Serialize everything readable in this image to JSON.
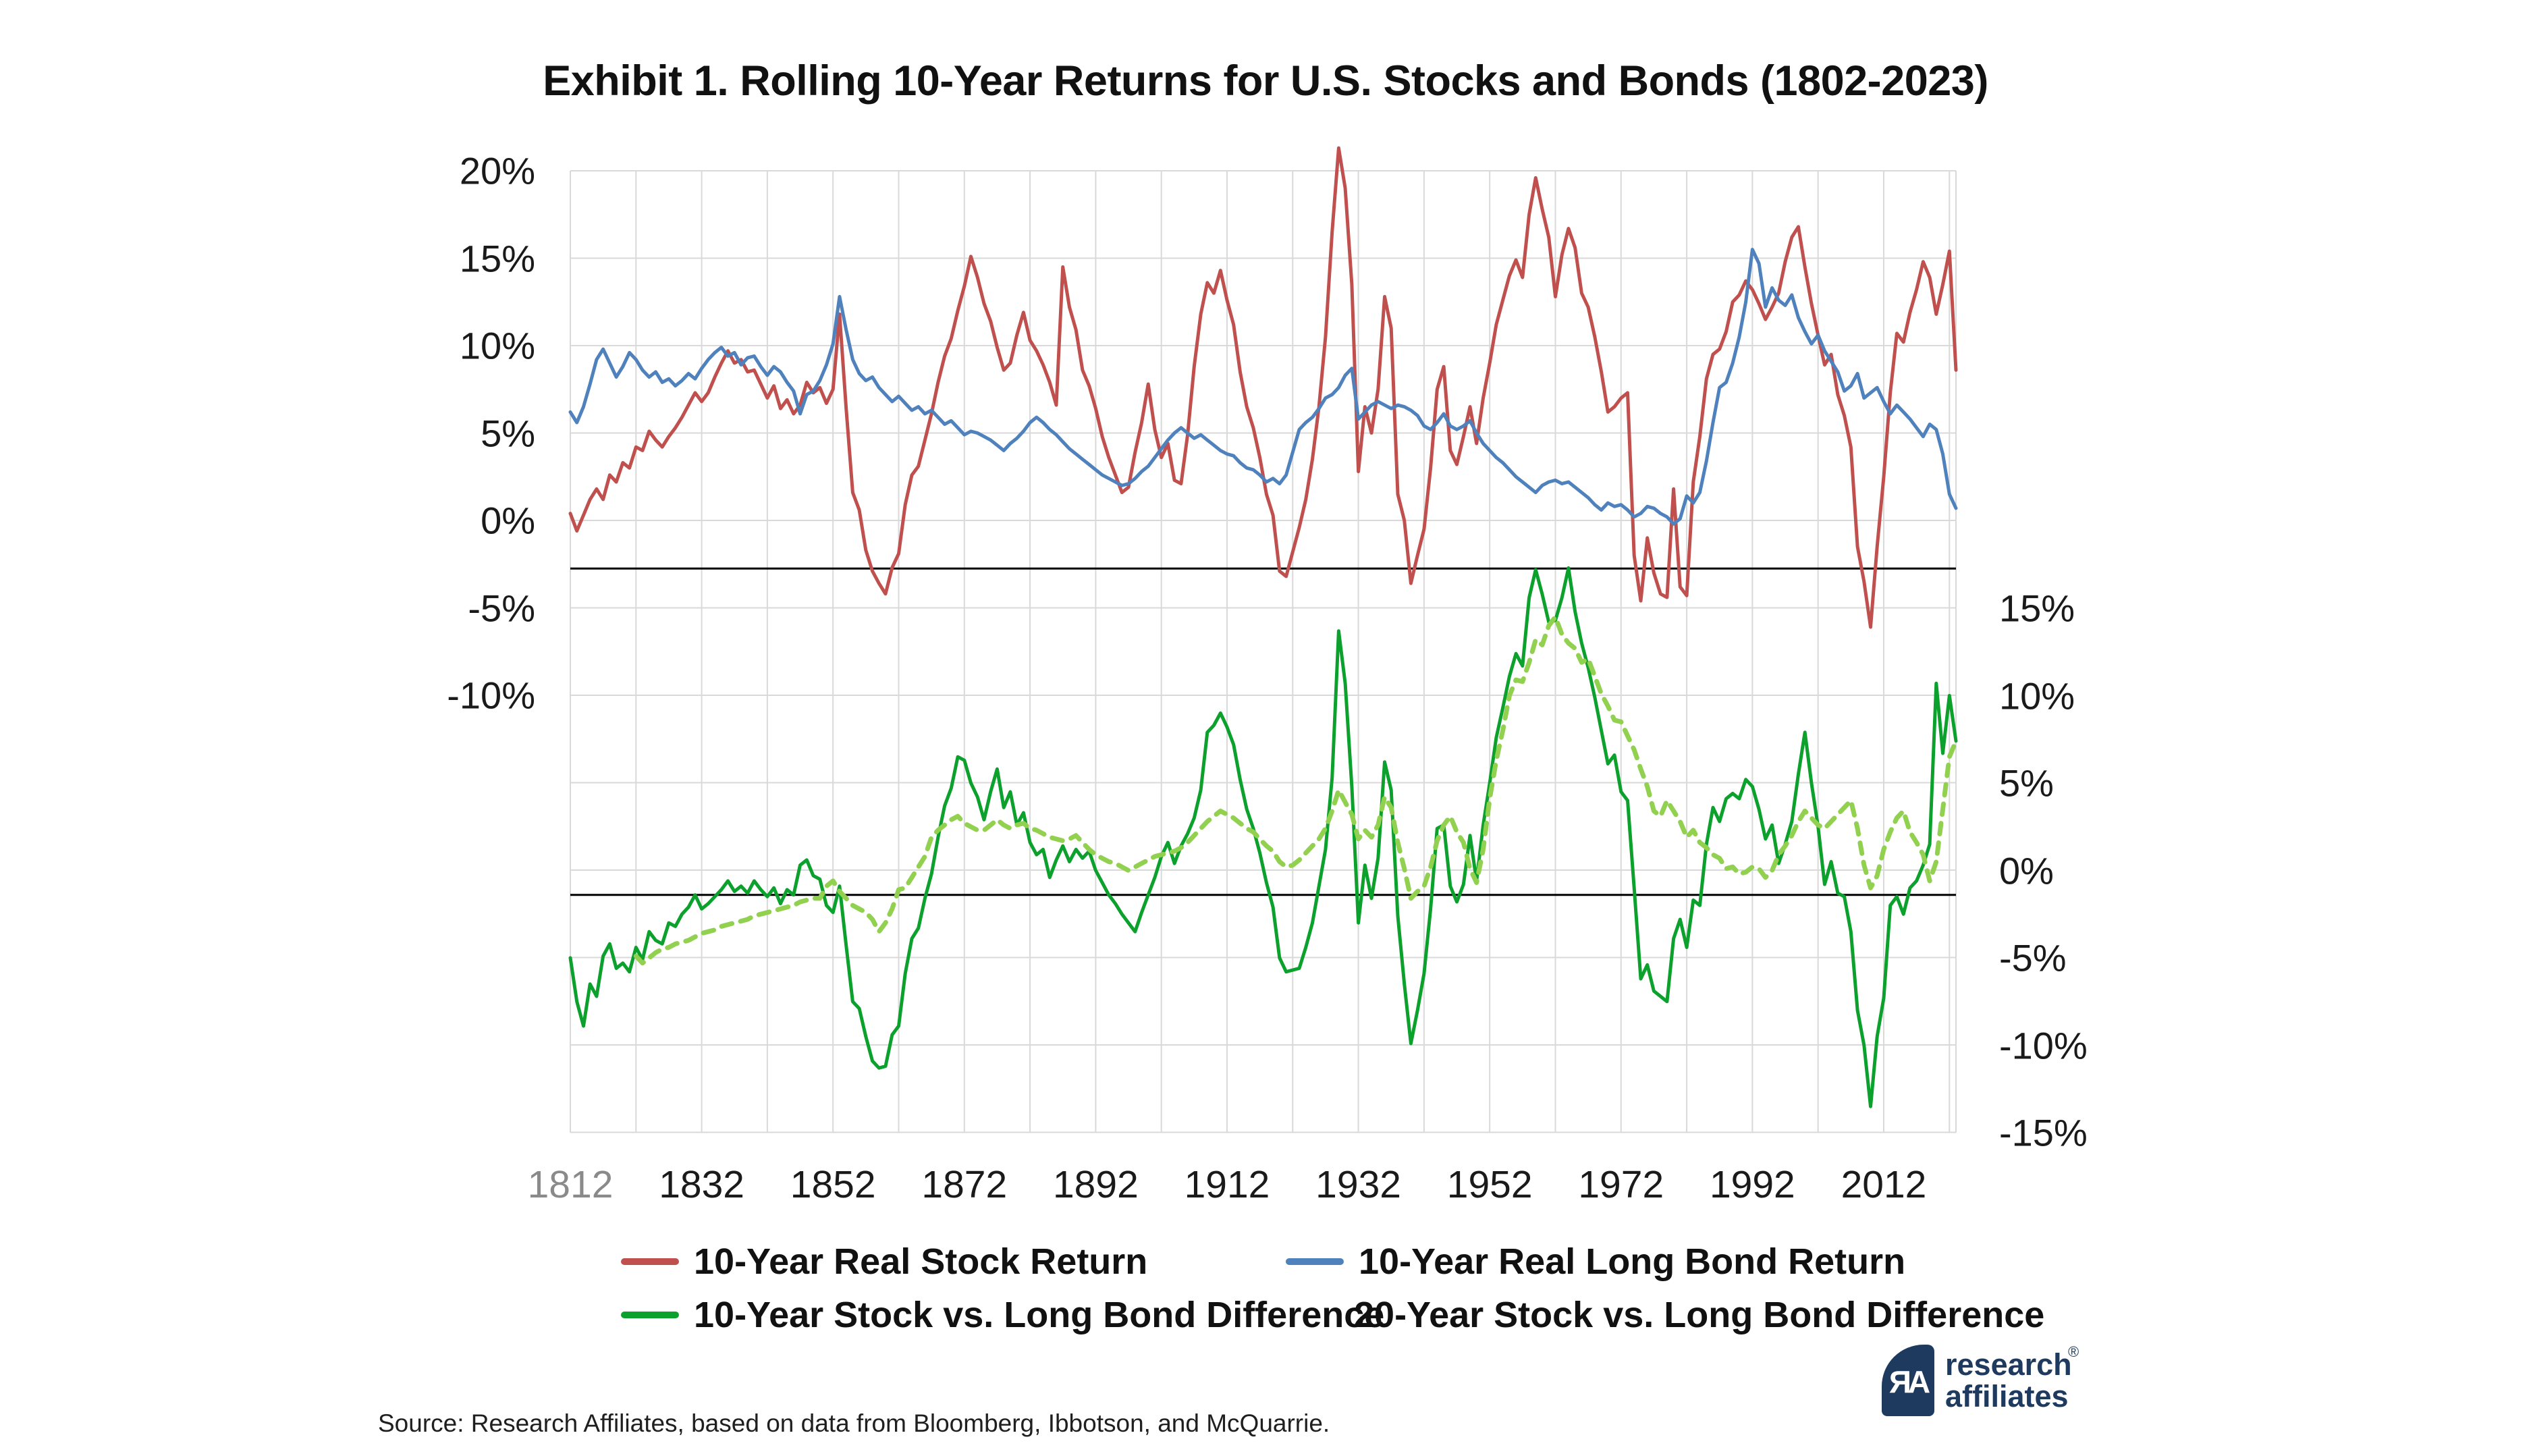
{
  "title": "Exhibit 1. Rolling 10-Year Returns for U.S. Stocks and Bonds (1802-2023)",
  "source": "Source: Research Affiliates, based on data from Bloomberg, Ibbotson, and McQuarrie.",
  "logo": {
    "glyph": "ЯA",
    "line1": "research",
    "line2": "affiliates",
    "registered": "®"
  },
  "colors": {
    "stock": "#C0504D",
    "bond": "#4F81BD",
    "diff10": "#0CA02C",
    "diff20": "#92D050",
    "grid": "#D9D9D9",
    "reference": "#000000",
    "text": "#1a1a1a",
    "muted_tick": "#8a8a8a",
    "brand_navy": "#1F3A5F"
  },
  "legend": [
    {
      "label": "10-Year Real Stock Return",
      "color": "#C0504D",
      "style": "solid",
      "row": 1,
      "x": 920
    },
    {
      "label": "10-Year Real Long Bond Return",
      "color": "#4F81BD",
      "style": "solid",
      "row": 1,
      "x": 1905
    },
    {
      "label": "10-Year Stock vs. Long Bond Difference",
      "color": "#0CA02C",
      "style": "solid",
      "row": 2,
      "x": 920
    },
    {
      "label": "20-Year Stock vs. Long Bond Difference",
      "color": "#92D050",
      "style": "dashed",
      "row": 2,
      "x": 1898
    }
  ],
  "chart_data": {
    "type": "line",
    "title": "Exhibit 1. Rolling 10-Year Returns for U.S. Stocks and Bonds (1802-2023)",
    "x_axis": {
      "min": 1812,
      "max": 2023,
      "gridline_step_years": 10,
      "tick_labels": [
        "1812",
        "1832",
        "1852",
        "1872",
        "1892",
        "1912",
        "1932",
        "1952",
        "1972",
        "1992",
        "2012"
      ],
      "tick_years": [
        1812,
        1832,
        1852,
        1872,
        1892,
        1912,
        1932,
        1952,
        1972,
        1992,
        2012
      ],
      "first_label_muted": true
    },
    "left_axis": {
      "labels": [
        "20%",
        "15%",
        "10%",
        "5%",
        "0%",
        "-5%",
        "-10%"
      ],
      "values": [
        20,
        15,
        10,
        5,
        0,
        -5,
        -10
      ],
      "applies_to": "upper panel (stock & bond returns)"
    },
    "right_axis": {
      "labels": [
        "15%",
        "10%",
        "5%",
        "0%",
        "-5%",
        "-10%",
        "-15%"
      ],
      "values": [
        15,
        10,
        5,
        0,
        -5,
        -10,
        -15
      ],
      "applies_to": "lower panel (stock-bond difference)"
    },
    "grid": {
      "horizontal_left_axis_values": [
        20,
        15,
        10,
        5,
        0,
        -5,
        -10,
        -15,
        -20,
        -25,
        -30,
        -35
      ],
      "vertical_every_years": 10,
      "on": true
    },
    "reference_lines": [
      {
        "axis": "left",
        "value": -2.75,
        "color": "#000000",
        "note": "black rule under upper panel"
      },
      {
        "axis": "right",
        "value": -1.4,
        "color": "#000000",
        "note": "black rule under lower panel"
      }
    ],
    "legend_position": "bottom",
    "series": [
      {
        "name": "10-Year Real Stock Return",
        "axis": "left",
        "color": "#C0504D",
        "style": "solid",
        "x_start": 1812,
        "values": [
          0.4,
          -0.6,
          0.3,
          1.2,
          1.8,
          1.2,
          2.6,
          2.2,
          3.3,
          3.0,
          4.2,
          4.0,
          5.1,
          4.6,
          4.2,
          4.8,
          5.3,
          5.9,
          6.6,
          7.3,
          6.8,
          7.3,
          8.2,
          9.0,
          9.7,
          9.0,
          9.2,
          8.5,
          8.6,
          7.8,
          7.0,
          7.7,
          6.4,
          6.9,
          6.1,
          6.6,
          7.9,
          7.3,
          7.6,
          6.7,
          7.5,
          11.8,
          6.4,
          1.6,
          0.6,
          -1.7,
          -2.9,
          -3.6,
          -4.2,
          -2.7,
          -1.9,
          0.9,
          2.6,
          3.1,
          4.6,
          6.1,
          7.9,
          9.4,
          10.4,
          12.0,
          13.4,
          15.1,
          13.9,
          12.4,
          11.4,
          9.9,
          8.6,
          9.0,
          10.6,
          11.9,
          10.3,
          9.7,
          8.9,
          7.9,
          6.6,
          14.5,
          12.2,
          10.9,
          8.6,
          7.7,
          6.4,
          4.8,
          3.6,
          2.6,
          1.6,
          1.9,
          3.9,
          5.6,
          7.8,
          5.2,
          3.6,
          4.4,
          2.3,
          2.1,
          4.9,
          8.8,
          11.8,
          13.6,
          13.0,
          14.3,
          12.6,
          11.2,
          8.5,
          6.5,
          5.3,
          3.6,
          1.5,
          0.3,
          -2.9,
          -3.2,
          -1.8,
          -0.4,
          1.2,
          3.5,
          6.5,
          10.5,
          16.5,
          21.3,
          19.0,
          13.5,
          2.8,
          6.5,
          5.0,
          7.5,
          12.8,
          11.0,
          1.5,
          0.0,
          -3.6,
          -2.0,
          -0.5,
          3.0,
          7.5,
          8.8,
          4.0,
          3.2,
          4.8,
          6.5,
          4.4,
          7.0,
          9.0,
          11.2,
          12.6,
          14.0,
          14.9,
          13.9,
          17.5,
          19.6,
          17.8,
          16.2,
          12.8,
          15.2,
          16.7,
          15.6,
          13.0,
          12.2,
          10.5,
          8.5,
          6.2,
          6.5,
          7.0,
          7.3,
          -2.0,
          -4.6,
          -1.0,
          -3.0,
          -4.2,
          -4.4,
          1.8,
          -3.8,
          -4.3,
          2.2,
          4.8,
          8.1,
          9.5,
          9.8,
          10.8,
          12.5,
          12.9,
          13.7,
          13.2,
          12.4,
          11.5,
          12.2,
          13.0,
          14.8,
          16.2,
          16.8,
          14.5,
          12.4,
          10.6,
          8.9,
          9.5,
          7.2,
          6.0,
          4.2,
          -1.5,
          -3.5,
          -6.1,
          -1.5,
          2.5,
          7.3,
          10.7,
          10.2,
          11.9,
          13.2,
          14.8,
          13.9,
          11.8,
          13.5,
          15.4,
          8.6
        ]
      },
      {
        "name": "10-Year Real Long Bond Return",
        "axis": "left",
        "color": "#4F81BD",
        "style": "solid",
        "x_start": 1812,
        "values": [
          6.2,
          5.6,
          6.5,
          7.8,
          9.2,
          9.8,
          9.0,
          8.2,
          8.8,
          9.6,
          9.2,
          8.6,
          8.2,
          8.5,
          7.9,
          8.1,
          7.7,
          8.0,
          8.4,
          8.1,
          8.7,
          9.2,
          9.6,
          9.9,
          9.4,
          9.6,
          8.9,
          9.3,
          9.4,
          8.8,
          8.3,
          8.8,
          8.5,
          7.9,
          7.4,
          6.1,
          7.2,
          7.4,
          8.0,
          8.9,
          10.1,
          12.8,
          10.9,
          9.2,
          8.4,
          8.0,
          8.2,
          7.6,
          7.2,
          6.8,
          7.1,
          6.7,
          6.3,
          6.5,
          6.1,
          6.3,
          5.9,
          5.5,
          5.7,
          5.3,
          4.9,
          5.1,
          5.0,
          4.8,
          4.6,
          4.3,
          4.0,
          4.4,
          4.7,
          5.1,
          5.6,
          5.9,
          5.6,
          5.2,
          4.9,
          4.5,
          4.1,
          3.8,
          3.5,
          3.2,
          2.9,
          2.6,
          2.4,
          2.2,
          2.0,
          2.1,
          2.4,
          2.8,
          3.1,
          3.6,
          4.1,
          4.6,
          5.0,
          5.3,
          5.0,
          4.7,
          4.9,
          4.6,
          4.3,
          4.0,
          3.8,
          3.7,
          3.3,
          3.0,
          2.9,
          2.6,
          2.2,
          2.4,
          2.1,
          2.6,
          3.9,
          5.2,
          5.6,
          5.9,
          6.4,
          7.0,
          7.2,
          7.6,
          8.3,
          8.7,
          5.8,
          6.2,
          6.6,
          6.8,
          6.6,
          6.4,
          6.6,
          6.5,
          6.3,
          6.0,
          5.4,
          5.2,
          5.6,
          6.1,
          5.4,
          5.2,
          5.4,
          5.7,
          5.0,
          4.4,
          4.0,
          3.6,
          3.3,
          2.9,
          2.5,
          2.2,
          1.9,
          1.6,
          2.0,
          2.2,
          2.3,
          2.1,
          2.2,
          1.9,
          1.6,
          1.3,
          0.9,
          0.6,
          1.0,
          0.8,
          0.9,
          0.6,
          0.2,
          0.4,
          0.8,
          0.7,
          0.4,
          0.2,
          -0.2,
          0.1,
          1.4,
          1.0,
          1.6,
          3.4,
          5.6,
          7.6,
          7.9,
          9.0,
          10.5,
          12.5,
          15.5,
          14.7,
          12.2,
          13.3,
          12.6,
          12.3,
          12.9,
          11.6,
          10.8,
          10.1,
          10.6,
          9.7,
          9.1,
          8.5,
          7.4,
          7.7,
          8.4,
          7.0,
          7.3,
          7.6,
          6.8,
          6.1,
          6.6,
          6.2,
          5.8,
          5.3,
          4.8,
          5.5,
          5.2,
          3.8,
          1.5,
          0.7
        ]
      },
      {
        "name": "10-Year Stock vs. Long Bond Difference",
        "axis": "right",
        "color": "#0CA02C",
        "style": "solid",
        "x_start": 1812,
        "values": [
          -5.0,
          -7.5,
          -8.9,
          -6.5,
          -7.2,
          -4.9,
          -4.2,
          -5.6,
          -5.3,
          -5.8,
          -4.4,
          -5.1,
          -3.5,
          -4.0,
          -4.2,
          -3.0,
          -3.2,
          -2.5,
          -2.1,
          -1.4,
          -2.2,
          -1.9,
          -1.5,
          -1.1,
          -0.6,
          -1.2,
          -0.9,
          -1.3,
          -0.6,
          -1.1,
          -1.5,
          -1.0,
          -1.9,
          -1.1,
          -1.4,
          0.3,
          0.6,
          -0.3,
          -0.5,
          -2.0,
          -2.4,
          -0.9,
          -4.3,
          -7.5,
          -7.9,
          -9.5,
          -10.9,
          -11.3,
          -11.2,
          -9.4,
          -8.9,
          -5.9,
          -3.9,
          -3.3,
          -1.6,
          -0.2,
          1.9,
          3.7,
          4.7,
          6.5,
          6.3,
          5.0,
          4.2,
          2.9,
          4.5,
          5.8,
          3.6,
          4.5,
          2.6,
          3.3,
          1.6,
          0.9,
          1.2,
          -0.4,
          0.6,
          1.4,
          0.5,
          1.2,
          0.7,
          1.1,
          0.0,
          -0.7,
          -1.4,
          -1.9,
          -2.5,
          -3.0,
          -3.5,
          -2.4,
          -1.4,
          -0.4,
          0.8,
          1.6,
          0.4,
          1.4,
          2.1,
          3.0,
          4.6,
          7.9,
          8.3,
          9.0,
          8.2,
          7.2,
          5.2,
          3.5,
          2.4,
          1.0,
          -0.7,
          -2.1,
          -5.0,
          -5.8,
          -5.7,
          -5.6,
          -4.4,
          -3.0,
          -0.9,
          1.2,
          5.3,
          13.7,
          10.7,
          4.8,
          -3.0,
          0.3,
          -1.6,
          0.7,
          6.2,
          4.6,
          -2.6,
          -6.5,
          -9.9,
          -8.0,
          -5.9,
          -2.2,
          2.4,
          2.6,
          -0.9,
          -1.8,
          -0.8,
          2.0,
          -0.6,
          2.6,
          5.0,
          7.6,
          9.3,
          11.1,
          12.4,
          11.7,
          15.6,
          17.2,
          15.8,
          14.2,
          14.3,
          15.6,
          17.3,
          14.8,
          13.0,
          11.6,
          9.9,
          8.0,
          6.1,
          6.6,
          4.5,
          4.0,
          -1.0,
          -6.2,
          -5.4,
          -6.9,
          -7.2,
          -7.5,
          -3.9,
          -2.8,
          -4.4,
          -1.7,
          -2.0,
          1.5,
          3.6,
          2.8,
          4.1,
          4.4,
          4.1,
          5.2,
          4.8,
          3.5,
          1.8,
          2.6,
          0.4,
          1.5,
          2.8,
          5.5,
          7.9,
          5.0,
          2.5,
          -0.8,
          0.5,
          -1.3,
          -1.5,
          -3.5,
          -8.0,
          -10.0,
          -13.5,
          -9.5,
          -7.3,
          -2.0,
          -1.5,
          -2.5,
          -1.0,
          -0.6,
          0.3,
          1.5,
          10.7,
          6.7,
          10.0,
          7.4
        ]
      },
      {
        "name": "20-Year Stock vs. Long Bond Difference",
        "axis": "right",
        "color": "#92D050",
        "style": "dashed",
        "x_start": 1822,
        "values": [
          -4.9,
          -5.3,
          -5.0,
          -4.7,
          -4.5,
          -4.4,
          -4.2,
          -4.1,
          -4.0,
          -3.8,
          -3.6,
          -3.5,
          -3.4,
          -3.2,
          -3.1,
          -3.0,
          -2.9,
          -2.8,
          -2.6,
          -2.5,
          -2.4,
          -2.3,
          -2.2,
          -2.1,
          -2.0,
          -1.8,
          -1.7,
          -1.6,
          -1.6,
          -0.9,
          -0.6,
          -1.2,
          -1.6,
          -2.0,
          -2.2,
          -2.4,
          -2.8,
          -3.5,
          -3.0,
          -2.2,
          -1.1,
          -1.0,
          -0.4,
          0.2,
          0.8,
          1.9,
          2.3,
          2.6,
          2.9,
          3.1,
          2.7,
          2.5,
          2.3,
          2.3,
          2.6,
          2.9,
          2.6,
          2.4,
          2.6,
          2.7,
          2.4,
          2.3,
          2.1,
          1.9,
          1.8,
          1.7,
          1.8,
          2.0,
          1.6,
          1.2,
          0.9,
          0.7,
          0.5,
          0.4,
          0.2,
          0.0,
          0.2,
          0.4,
          0.6,
          0.8,
          0.9,
          1.0,
          1.1,
          1.3,
          1.6,
          2.0,
          2.4,
          2.8,
          3.1,
          3.4,
          3.2,
          3.0,
          2.7,
          2.4,
          2.2,
          1.8,
          1.4,
          1.1,
          0.5,
          0.2,
          0.3,
          0.6,
          1.0,
          1.4,
          1.8,
          2.4,
          3.4,
          4.6,
          3.9,
          3.2,
          1.8,
          2.3,
          1.9,
          2.6,
          4.2,
          3.6,
          1.6,
          0.1,
          -1.6,
          -1.2,
          -0.9,
          0.2,
          1.7,
          2.6,
          3.1,
          2.2,
          1.6,
          0.1,
          -0.7,
          1.2,
          4.1,
          6.3,
          8.0,
          10.0,
          10.9,
          10.8,
          11.9,
          13.2,
          12.9,
          14.0,
          14.5,
          13.5,
          13.0,
          12.7,
          11.9,
          12.1,
          11.1,
          10.1,
          9.4,
          8.6,
          8.5,
          7.7,
          6.9,
          5.8,
          4.8,
          3.4,
          3.1,
          4.0,
          3.4,
          2.8,
          1.9,
          2.3,
          1.6,
          1.3,
          0.9,
          0.7,
          0.1,
          0.2,
          -0.2,
          -0.1,
          0.2,
          0.1,
          -0.4,
          0.0,
          0.9,
          1.4,
          2.0,
          2.8,
          3.4,
          3.0,
          2.6,
          2.4,
          2.8,
          3.2,
          3.6,
          4.0,
          2.4,
          0.3,
          -1.0,
          -0.3,
          1.2,
          2.2,
          3.0,
          3.4,
          2.2,
          1.6,
          0.9,
          -0.6,
          0.5,
          3.5,
          6.5,
          7.4
        ]
      }
    ]
  }
}
